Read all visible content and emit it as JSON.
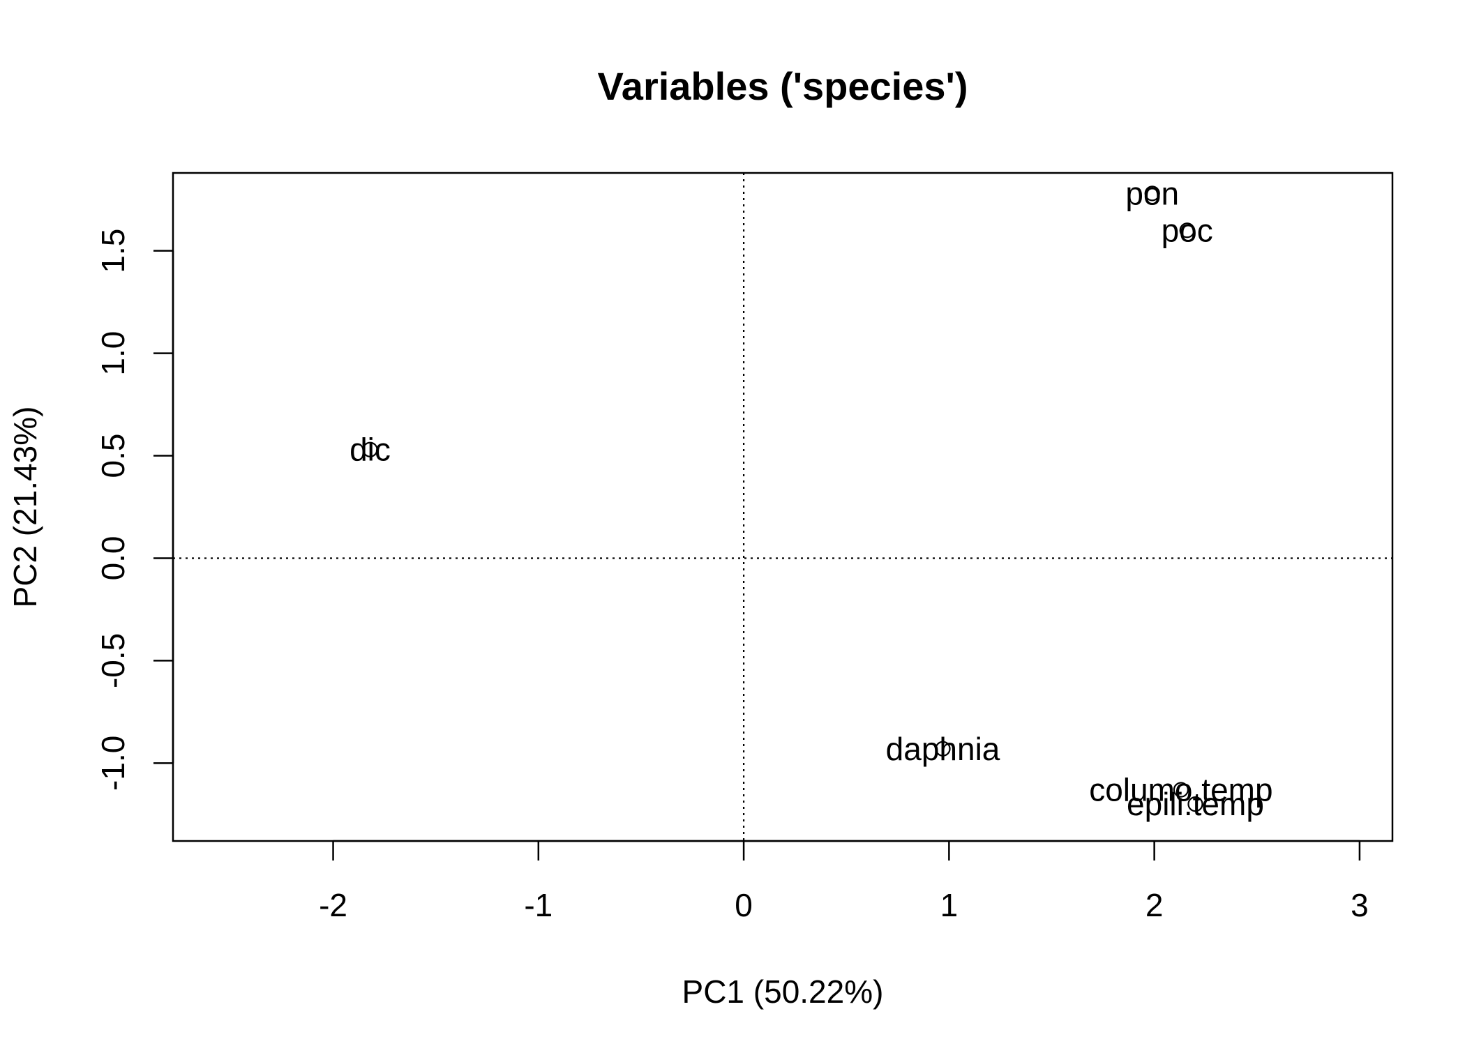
{
  "chart_data": {
    "type": "scatter",
    "title": "Variables ('species')",
    "xlabel": "PC1 (50.22%)",
    "ylabel": "PC2 (21.43%)",
    "xlim": [
      -2.78,
      3.16
    ],
    "ylim": [
      -1.38,
      1.88
    ],
    "x_ticks": [
      -2,
      -1,
      0,
      1,
      2,
      3
    ],
    "x_tick_labels": [
      "-2",
      "-1",
      "0",
      "1",
      "2",
      "3"
    ],
    "y_ticks": [
      -1.0,
      -0.5,
      0.0,
      0.5,
      1.0,
      1.5
    ],
    "y_tick_labels": [
      "-1.0",
      "-0.5",
      "0.0",
      "0.5",
      "1.0",
      "1.5"
    ],
    "reference_lines": {
      "x": 0,
      "y": 0,
      "style": "dotted"
    },
    "grid": false,
    "points": [
      {
        "label": "dic",
        "x": -1.82,
        "y": 0.53
      },
      {
        "label": "pon",
        "x": 1.99,
        "y": 1.78
      },
      {
        "label": "poc",
        "x": 2.16,
        "y": 1.6
      },
      {
        "label": "daphnia",
        "x": 0.97,
        "y": -0.93
      },
      {
        "label": "columo.temp",
        "x": 2.13,
        "y": -1.13
      },
      {
        "label": "epili.temp",
        "x": 2.2,
        "y": -1.2
      }
    ]
  }
}
